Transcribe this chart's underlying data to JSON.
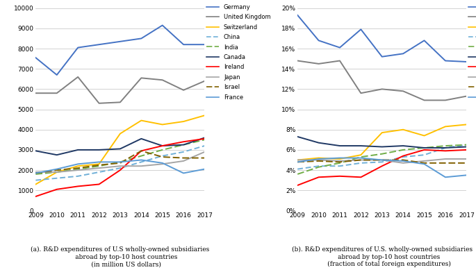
{
  "years": [
    2009,
    2010,
    2011,
    2012,
    2013,
    2014,
    2015,
    2016,
    2017
  ],
  "left": {
    "Germany": [
      7550,
      6700,
      8050,
      8200,
      8350,
      8500,
      9150,
      8200,
      8200
    ],
    "United Kingdom": [
      5800,
      5800,
      6600,
      5300,
      5350,
      6550,
      6450,
      5950,
      6400
    ],
    "Switzerland": [
      1300,
      1900,
      2200,
      2300,
      3800,
      4450,
      4250,
      4400,
      4700
    ],
    "China": [
      1500,
      1600,
      1700,
      1900,
      2100,
      2400,
      2700,
      2900,
      3200
    ],
    "India": [
      1800,
      1900,
      2050,
      2200,
      2400,
      2700,
      3000,
      3250,
      3500
    ],
    "Canada": [
      2950,
      2750,
      3000,
      3000,
      3050,
      3550,
      3200,
      3250,
      3600
    ],
    "Ireland": [
      700,
      1050,
      1200,
      1300,
      2000,
      2950,
      3200,
      3400,
      3550
    ],
    "Japan": [
      1900,
      1900,
      2000,
      2100,
      2200,
      2200,
      2300,
      2450,
      2900
    ],
    "Israel": [
      1850,
      2000,
      2100,
      2250,
      2350,
      2950,
      2650,
      2600,
      2600
    ],
    "France": [
      1850,
      2050,
      2300,
      2400,
      2400,
      2500,
      2350,
      1850,
      2050
    ]
  },
  "right": {
    "Germany": [
      0.193,
      0.168,
      0.161,
      0.179,
      0.152,
      0.155,
      0.168,
      0.148,
      0.147
    ],
    "United Kingdom": [
      0.148,
      0.145,
      0.148,
      0.116,
      0.12,
      0.118,
      0.109,
      0.109,
      0.113
    ],
    "Switzerland": [
      0.05,
      0.052,
      0.051,
      0.055,
      0.077,
      0.08,
      0.074,
      0.083,
      0.085
    ],
    "China": [
      0.041,
      0.044,
      0.044,
      0.047,
      0.048,
      0.053,
      0.055,
      0.062,
      0.065
    ],
    "India": [
      0.036,
      0.043,
      0.047,
      0.053,
      0.056,
      0.06,
      0.062,
      0.064,
      0.065
    ],
    "Canada": [
      0.073,
      0.067,
      0.064,
      0.064,
      0.063,
      0.064,
      0.062,
      0.062,
      0.063
    ],
    "Ireland": [
      0.025,
      0.033,
      0.034,
      0.033,
      0.044,
      0.054,
      0.06,
      0.059,
      0.06
    ],
    "Japan": [
      0.05,
      0.05,
      0.049,
      0.05,
      0.05,
      0.047,
      0.049,
      0.051,
      0.051
    ],
    "Israel": [
      0.048,
      0.049,
      0.048,
      0.05,
      0.05,
      0.05,
      0.047,
      0.047,
      0.047
    ],
    "France": [
      0.048,
      0.051,
      0.052,
      0.052,
      0.05,
      0.049,
      0.046,
      0.033,
      0.035
    ]
  },
  "colors": {
    "Germany": "#4472C4",
    "United Kingdom": "#808080",
    "Switzerland": "#FFC000",
    "China": "#70B0D8",
    "India": "#70AD47",
    "Canada": "#1F3864",
    "Ireland": "#FF0000",
    "Japan": "#A5A5A5",
    "Israel": "#806000",
    "France": "#5B9BD5"
  },
  "styles": {
    "Germany": {
      "linestyle": "-",
      "dashes": null
    },
    "United Kingdom": {
      "linestyle": "-",
      "dashes": null
    },
    "Switzerland": {
      "linestyle": "-",
      "dashes": null
    },
    "China": {
      "linestyle": "--",
      "dashes": [
        4,
        2
      ]
    },
    "India": {
      "linestyle": "--",
      "dashes": [
        5,
        2
      ]
    },
    "Canada": {
      "linestyle": "-",
      "dashes": null
    },
    "Ireland": {
      "linestyle": "-",
      "dashes": null
    },
    "Japan": {
      "linestyle": "-",
      "dashes": null
    },
    "Israel": {
      "linestyle": "--",
      "dashes": [
        5,
        2
      ]
    },
    "France": {
      "linestyle": "-",
      "dashes": null
    }
  },
  "left_ylim": [
    0,
    10000
  ],
  "left_yticks": [
    0,
    1000,
    2000,
    3000,
    4000,
    5000,
    6000,
    7000,
    8000,
    9000,
    10000
  ],
  "right_ylim": [
    0.0,
    0.2
  ],
  "right_yticks": [
    0.0,
    0.02,
    0.04,
    0.06,
    0.08,
    0.1,
    0.12,
    0.14,
    0.16,
    0.18,
    0.2
  ],
  "caption_a": "(a). R&D expenditures of U.S wholly-owned subsidiaries\n      abroad by top-10 host countries\n      (in million US dollars)",
  "caption_b": "(b). R&D expenditures of U.S. wholly-owned subsidiaries\n       abroad by top-10 host countries\n       (fraction of total foreign expenditures)"
}
